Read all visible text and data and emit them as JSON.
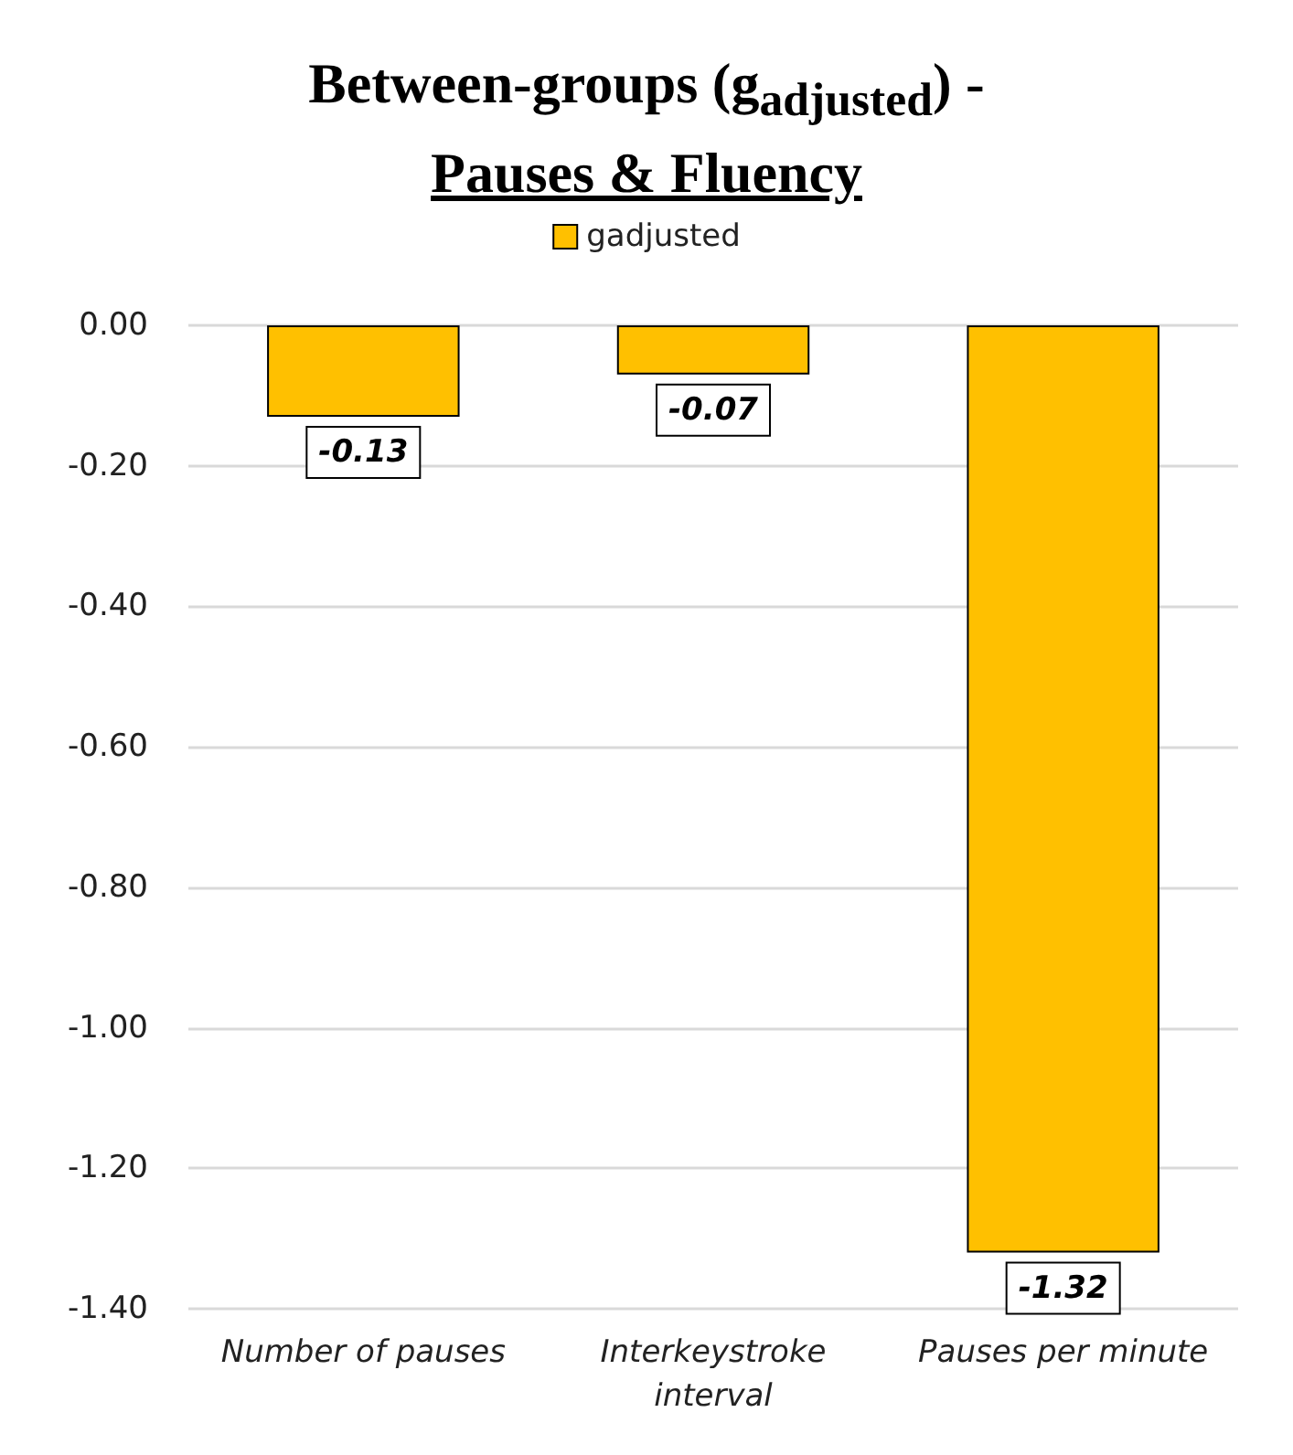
{
  "chart_data": {
    "type": "bar",
    "title": "Between-groups (g$_{adjusted}$) -",
    "subtitle": "Pauses & Fluency",
    "categories": [
      "Number of pauses",
      "Interkeystroke\ninterval",
      "Pauses per minute"
    ],
    "series": [
      {
        "name": "gadjusted",
        "color": "#ffc000",
        "values": [
          -0.13,
          -0.07,
          -1.32
        ]
      }
    ],
    "ylim": [
      -1.4,
      0
    ],
    "yticks": [
      {
        "value": -1.4,
        "label": "-1.40"
      },
      {
        "value": -1.2,
        "label": "-1.20"
      },
      {
        "value": -1,
        "label": "-1.00"
      },
      {
        "value": -0.8,
        "label": "-0.80"
      },
      {
        "value": -0.6,
        "label": "-0.60"
      },
      {
        "value": -0.4,
        "label": "-0.40"
      },
      {
        "value": -0.2,
        "label": "-0.20"
      },
      {
        "value": 0,
        "label": "0.00"
      }
    ],
    "grid": "y",
    "legend": "top",
    "data_labels": true
  }
}
